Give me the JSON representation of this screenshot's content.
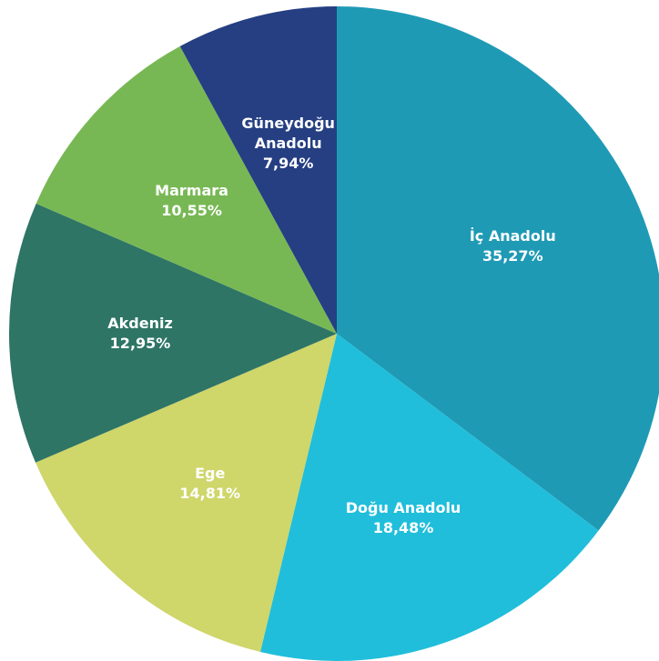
{
  "chart_data": {
    "type": "pie",
    "categories": [
      "İç Anadolu",
      "Doğu Anadolu",
      "Ege",
      "Akdeniz",
      "Marmara",
      "Güneydoğu Anadolu"
    ],
    "values": [
      35.27,
      18.48,
      14.81,
      12.95,
      10.55,
      7.94
    ],
    "value_labels": [
      "35,27%",
      "18,48%",
      "14,81%",
      "12,95%",
      "10,55%",
      "7,94%"
    ],
    "colors": [
      "#1f9ab5",
      "#20bedb",
      "#cfd66a",
      "#2e7566",
      "#78b854",
      "#253f82"
    ]
  }
}
